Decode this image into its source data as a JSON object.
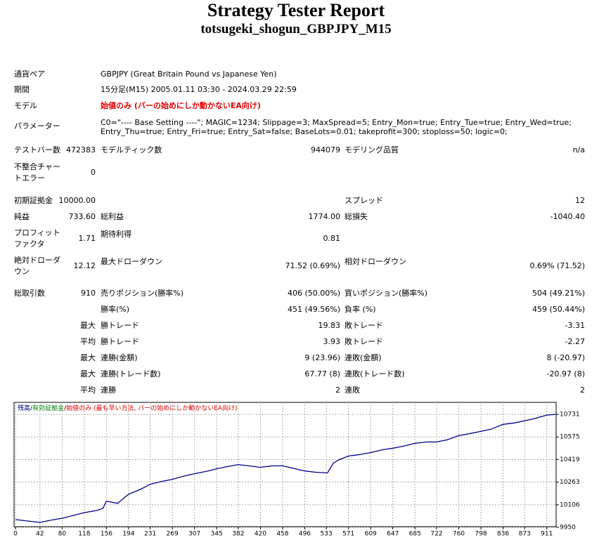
{
  "header": {
    "title": "Strategy Tester Report",
    "subtitle": "totsugeki_shogun_GBPJPY_M15"
  },
  "info": [
    {
      "label": "通貨ペア",
      "value": "GBPJPY (Great Britain Pound vs Japanese Yen)"
    },
    {
      "label": "期間",
      "value": "15分足(M15) 2005.01.11 03:30 - 2024.03.29 22:59"
    },
    {
      "label": "モデル",
      "value": "始値のみ (バーの始めにしか動かないEA向け)"
    },
    {
      "label": "パラメーター",
      "value": "C0=\"---- Base Setting ----\"; MAGIC=1234; Slippage=3; MaxSpread=5; Entry_Mon=true; Entry_Tue=true; Entry_Wed=true; Entry_Thu=true; Entry_Fri=true; Entry_Sat=false; BaseLots=0.01; takeprofit=300; stoploss=50; logic=0;"
    }
  ],
  "stats": [
    {
      "l1": "テストバー数",
      "v1": "472383",
      "l2": "モデルティック数",
      "v2": "944079",
      "l3": "モデリング品質",
      "v3": "n/a"
    },
    {
      "l1": "不整合チャートエラー",
      "v1": "0"
    },
    {
      "l1": "初期証拠金",
      "v1": "10000.00",
      "l3": "スプレッド",
      "v3": "12"
    },
    {
      "l1": "純益",
      "v1": "733.60",
      "l2": "総利益",
      "v2": "1774.00",
      "l3": "総損失",
      "v3": "-1040.40"
    },
    {
      "l1": "プロフィットファクタ",
      "v1": "1.71",
      "l2": "期待利得",
      "v2": "0.81"
    },
    {
      "l1": "絶対ドローダウン",
      "v1": "12.12",
      "l2": "最大ドローダウン",
      "v2": "71.52 (0.69%)",
      "l3": "相対ドローダウン",
      "v3": "0.69% (71.52)"
    },
    {
      "l1": "総取引数",
      "v1": "910",
      "l2": "売りポジション(勝率%)",
      "v2": "406 (50.00%)",
      "l3": "買いポジション(勝率%)",
      "v3": "504 (49.21%)"
    },
    {
      "l2": "勝率(%)",
      "v2": "451 (49.56%)",
      "l3": "負率 (%)",
      "v3": "459 (50.44%)"
    },
    {
      "v1": "最大",
      "l2": "勝トレード",
      "v2": "19.83",
      "l3": "敗トレード",
      "v3": "-3.31"
    },
    {
      "v1": "平均",
      "l2": "勝トレード",
      "v2": "3.93",
      "l3": "敗トレード",
      "v3": "-2.27"
    },
    {
      "v1": "最大",
      "l2": "連勝(金額)",
      "v2": "9 (23.96)",
      "l3": "連敗(金額)",
      "v3": "8 (-20.97)"
    },
    {
      "v1": "最大",
      "l2": "連勝(トレード数)",
      "v2": "67.77 (8)",
      "l3": "連敗(トレード数)",
      "v3": "-20.97 (8)"
    },
    {
      "v1": "平均",
      "l2": "連勝",
      "v2": "2",
      "l3": "連敗",
      "v3": "2"
    }
  ],
  "chart_data": {
    "type": "line",
    "legend_separator": "/",
    "legend_notes": [
      {
        "text": "有効証拠金",
        "color": "#008000"
      },
      {
        "text": "始値のみ (最も早い方法, バーの始めにしか動かないEA向け)",
        "color": "#e00000"
      }
    ],
    "x": [
      0,
      20,
      42,
      60,
      80,
      100,
      118,
      140,
      150,
      156,
      175,
      194,
      215,
      231,
      250,
      269,
      290,
      307,
      330,
      345,
      370,
      382,
      400,
      420,
      440,
      458,
      480,
      496,
      515,
      535,
      545,
      555,
      571,
      590,
      609,
      630,
      647,
      665,
      685,
      705,
      722,
      740,
      760,
      780,
      798,
      815,
      836,
      855,
      873,
      890,
      911,
      926
    ],
    "series": [
      {
        "name": "残高",
        "color": "#00008b",
        "values": [
          10004,
          9994,
          9984,
          9999,
          10013,
          10033,
          10052,
          10067,
          10082,
          10131,
          10116,
          10179,
          10214,
          10248,
          10267,
          10282,
          10306,
          10321,
          10340,
          10355,
          10375,
          10384,
          10375,
          10365,
          10375,
          10375,
          10355,
          10340,
          10331,
          10326,
          10394,
          10418,
          10443,
          10453,
          10467,
          10487,
          10497,
          10511,
          10531,
          10540,
          10540,
          10555,
          10584,
          10599,
          10614,
          10628,
          10662,
          10672,
          10687,
          10702,
          10726,
          10731
        ]
      }
    ],
    "xlim": [
      0,
      927
    ],
    "ylim": [
      9950,
      10814
    ],
    "xticks": [
      0,
      42,
      80,
      118,
      156,
      194,
      231,
      269,
      307,
      345,
      382,
      420,
      458,
      496,
      533,
      571,
      609,
      647,
      685,
      722,
      760,
      798,
      836,
      873,
      911
    ],
    "yticks": [
      9950,
      10106,
      10263,
      10419,
      10575,
      10731
    ],
    "grid": true
  }
}
